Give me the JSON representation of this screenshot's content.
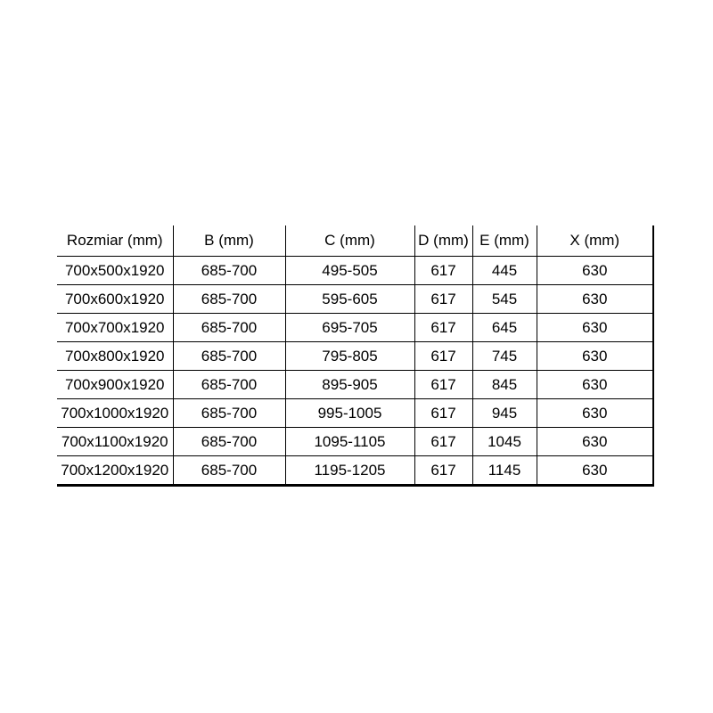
{
  "table": {
    "name": "shower-enclosure-dimensions",
    "columns": [
      "Rozmiar (mm)",
      "B (mm)",
      "C (mm)",
      "D (mm)",
      "E (mm)",
      "X (mm)"
    ],
    "rows": [
      [
        "700x500x1920",
        "685-700",
        "495-505",
        "617",
        "445",
        "630"
      ],
      [
        "700x600x1920",
        "685-700",
        "595-605",
        "617",
        "545",
        "630"
      ],
      [
        "700x700x1920",
        "685-700",
        "695-705",
        "617",
        "645",
        "630"
      ],
      [
        "700x800x1920",
        "685-700",
        "795-805",
        "617",
        "745",
        "630"
      ],
      [
        "700x900x1920",
        "685-700",
        "895-905",
        "617",
        "845",
        "630"
      ],
      [
        "700x1000x1920",
        "685-700",
        "995-1005",
        "617",
        "945",
        "630"
      ],
      [
        "700x1100x1920",
        "685-700",
        "1095-1105",
        "617",
        "1045",
        "630"
      ],
      [
        "700x1200x1920",
        "685-700",
        "1195-1205",
        "617",
        "1145",
        "630"
      ]
    ],
    "colors": {
      "text": "#000000",
      "border": "#000000",
      "background": "#ffffff"
    }
  },
  "chart_data": {
    "type": "table",
    "title": "",
    "columns": [
      "Rozmiar (mm)",
      "B (mm)",
      "C (mm)",
      "D (mm)",
      "E (mm)",
      "X (mm)"
    ],
    "rows": [
      [
        "700x500x1920",
        "685-700",
        "495-505",
        "617",
        "445",
        "630"
      ],
      [
        "700x600x1920",
        "685-700",
        "595-605",
        "617",
        "545",
        "630"
      ],
      [
        "700x700x1920",
        "685-700",
        "695-705",
        "617",
        "645",
        "630"
      ],
      [
        "700x800x1920",
        "685-700",
        "795-805",
        "617",
        "745",
        "630"
      ],
      [
        "700x900x1920",
        "685-700",
        "895-905",
        "617",
        "845",
        "630"
      ],
      [
        "700x1000x1920",
        "685-700",
        "995-1005",
        "617",
        "945",
        "630"
      ],
      [
        "700x1100x1920",
        "685-700",
        "1095-1105",
        "617",
        "1045",
        "630"
      ],
      [
        "700x1200x1920",
        "685-700",
        "1195-1205",
        "617",
        "1145",
        "630"
      ]
    ]
  }
}
